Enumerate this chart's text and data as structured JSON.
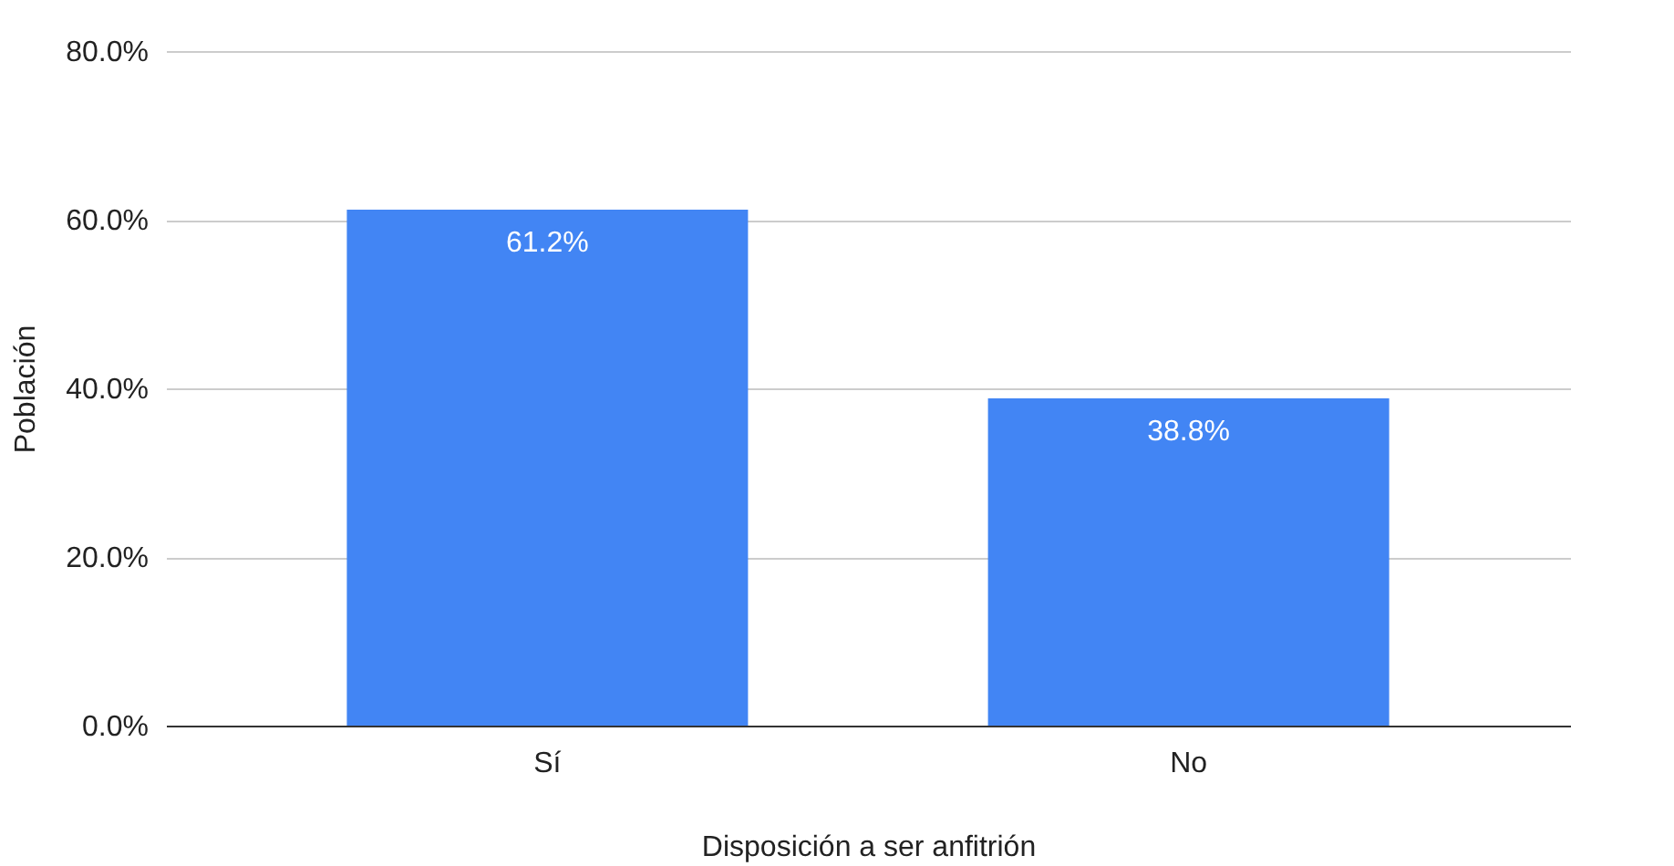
{
  "chart_data": {
    "type": "bar",
    "xlabel": "Disposición a ser anfitrión",
    "ylabel": "Población",
    "categories": [
      "Sí",
      "No"
    ],
    "values": [
      61.2,
      38.8
    ],
    "value_labels": [
      "61.2%",
      "38.8%"
    ],
    "color": "#4285f4",
    "ylim": [
      0,
      80
    ],
    "yticks": [
      {
        "value": 0,
        "label": "0.0%"
      },
      {
        "value": 20,
        "label": "20.0%"
      },
      {
        "value": 40,
        "label": "40.0%"
      },
      {
        "value": 60,
        "label": "60.0%"
      },
      {
        "value": 80,
        "label": "80.0%"
      }
    ],
    "grid": "y"
  }
}
